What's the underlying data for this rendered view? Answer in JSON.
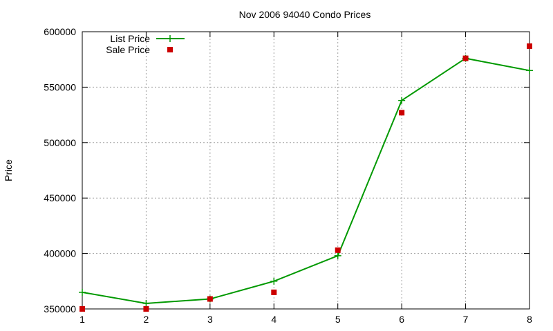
{
  "chart_data": {
    "type": "line",
    "title": "Nov 2006 94040 Condo Prices",
    "xlabel": "",
    "ylabel": "Price",
    "xlim": [
      1,
      8
    ],
    "ylim": [
      350000,
      600000
    ],
    "x_ticks": [
      1,
      2,
      3,
      4,
      5,
      6,
      7,
      8
    ],
    "y_ticks": [
      350000,
      400000,
      450000,
      500000,
      550000,
      600000
    ],
    "grid": true,
    "legend_position": "top-left",
    "x": [
      1,
      2,
      3,
      4,
      5,
      6,
      7,
      8
    ],
    "series": [
      {
        "name": "List Price",
        "style": "line-with-plus-markers",
        "color": "#009900",
        "values": [
          365000,
          355000,
          359000,
          375000,
          398000,
          538000,
          576000,
          565000
        ]
      },
      {
        "name": "Sale Price",
        "style": "square-points",
        "color": "#cc0000",
        "values": [
          350000,
          350000,
          359000,
          365000,
          403000,
          527000,
          576000,
          587000
        ]
      }
    ]
  }
}
